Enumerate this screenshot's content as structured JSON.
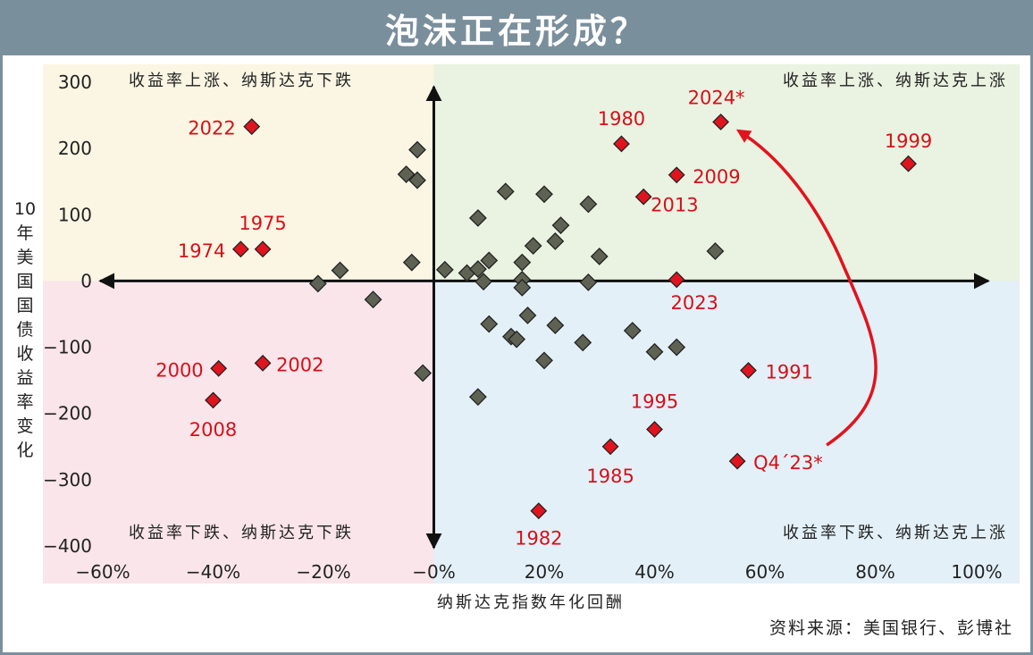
{
  "title": "泡沫正在形成？",
  "source": "资料来源：美国银行、彭博社",
  "chart_data": {
    "type": "scatter",
    "xlabel": "纳斯达克指数年化回酬",
    "ylabel": "10年美国国债收益率变化",
    "xlim": [
      -60,
      100
    ],
    "ylim": [
      -400,
      300
    ],
    "xticks": [
      "−60%",
      "−40%",
      "−20%",
      "−0%",
      "20%",
      "40%",
      "60%",
      "80%",
      "100%"
    ],
    "yticks": [
      "300",
      "200",
      "100",
      "0",
      "−100",
      "−200",
      "−300",
      "−400"
    ],
    "quadrants": {
      "top_left": "收益率上涨、纳斯达克下跌",
      "top_right": "收益率上涨、纳斯达克上涨",
      "bottom_left": "收益率下跌、纳斯达克下跌",
      "bottom_right": "收益率下跌、纳斯达克上涨"
    },
    "colors": {
      "top_left": "#faf6e3",
      "top_right": "#eaf2e1",
      "bottom_left": "#f9e5ea",
      "bottom_right": "#e3f0f8",
      "highlight": "#e0141e",
      "other": "#5e6253",
      "label": "#d6101a"
    },
    "highlighted": [
      {
        "label": "2022",
        "x": -33,
        "y": 233
      },
      {
        "label": "1975",
        "x": -31,
        "y": 48
      },
      {
        "label": "1974",
        "x": -35,
        "y": 48
      },
      {
        "label": "2000",
        "x": -39,
        "y": -132
      },
      {
        "label": "2002",
        "x": -31,
        "y": -124
      },
      {
        "label": "2008",
        "x": -40,
        "y": -180
      },
      {
        "label": "1980",
        "x": 34,
        "y": 207
      },
      {
        "label": "2024*",
        "x": 52,
        "y": 240
      },
      {
        "label": "1999",
        "x": 86,
        "y": 177
      },
      {
        "label": "2009",
        "x": 44,
        "y": 160
      },
      {
        "label": "2013",
        "x": 38,
        "y": 127
      },
      {
        "label": "2023",
        "x": 44,
        "y": 2
      },
      {
        "label": "1991",
        "x": 57,
        "y": -135
      },
      {
        "label": "1995",
        "x": 40,
        "y": -224
      },
      {
        "label": "1985",
        "x": 32,
        "y": -250
      },
      {
        "label": "Q4´23*",
        "x": 55,
        "y": -272
      },
      {
        "label": "1982",
        "x": 19,
        "y": -347
      }
    ],
    "other_points": [
      {
        "x": -3,
        "y": 198
      },
      {
        "x": -5,
        "y": 161
      },
      {
        "x": -3,
        "y": 152
      },
      {
        "x": -4,
        "y": 28
      },
      {
        "x": -17,
        "y": 16
      },
      {
        "x": -21,
        "y": -4
      },
      {
        "x": -11,
        "y": -28
      },
      {
        "x": -2,
        "y": -139
      },
      {
        "x": 2,
        "y": 17
      },
      {
        "x": 6,
        "y": 12
      },
      {
        "x": 8,
        "y": 18
      },
      {
        "x": 9,
        "y": -1
      },
      {
        "x": 10,
        "y": 31
      },
      {
        "x": 8,
        "y": 95
      },
      {
        "x": 13,
        "y": 135
      },
      {
        "x": 20,
        "y": 131
      },
      {
        "x": 28,
        "y": 116
      },
      {
        "x": 23,
        "y": 84
      },
      {
        "x": 22,
        "y": 60
      },
      {
        "x": 18,
        "y": 53
      },
      {
        "x": 16,
        "y": 28
      },
      {
        "x": 30,
        "y": 37
      },
      {
        "x": 16,
        "y": 2
      },
      {
        "x": 16,
        "y": -10
      },
      {
        "x": 28,
        "y": -2
      },
      {
        "x": 51,
        "y": 45
      },
      {
        "x": 10,
        "y": -65
      },
      {
        "x": 17,
        "y": -52
      },
      {
        "x": 22,
        "y": -67
      },
      {
        "x": 14,
        "y": -84
      },
      {
        "x": 15,
        "y": -88
      },
      {
        "x": 27,
        "y": -93
      },
      {
        "x": 36,
        "y": -75
      },
      {
        "x": 40,
        "y": -107
      },
      {
        "x": 44,
        "y": -100
      },
      {
        "x": 20,
        "y": -120
      },
      {
        "x": 8,
        "y": -175
      }
    ],
    "arrow": {
      "from": "Q4´23*",
      "to": "2024*"
    }
  }
}
